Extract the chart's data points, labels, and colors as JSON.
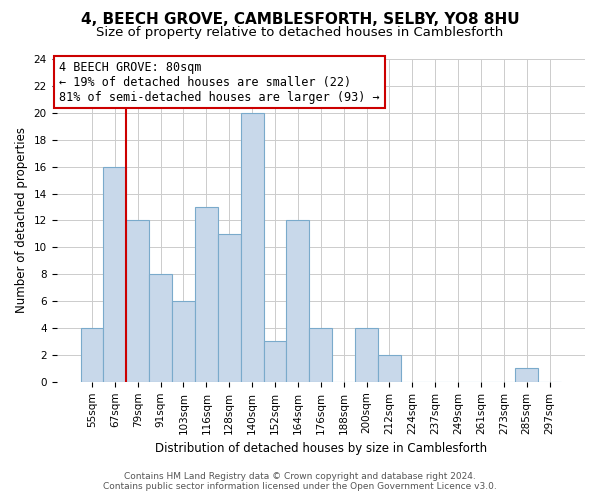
{
  "title": "4, BEECH GROVE, CAMBLESFORTH, SELBY, YO8 8HU",
  "subtitle": "Size of property relative to detached houses in Camblesforth",
  "xlabel": "Distribution of detached houses by size in Camblesforth",
  "ylabel": "Number of detached properties",
  "bin_labels": [
    "55sqm",
    "67sqm",
    "79sqm",
    "91sqm",
    "103sqm",
    "116sqm",
    "128sqm",
    "140sqm",
    "152sqm",
    "164sqm",
    "176sqm",
    "188sqm",
    "200sqm",
    "212sqm",
    "224sqm",
    "237sqm",
    "249sqm",
    "261sqm",
    "273sqm",
    "285sqm",
    "297sqm"
  ],
  "bar_values": [
    4,
    16,
    12,
    8,
    6,
    13,
    11,
    20,
    3,
    12,
    4,
    0,
    4,
    2,
    0,
    0,
    0,
    0,
    0,
    1,
    0
  ],
  "bar_color": "#c8d8ea",
  "bar_edge_color": "#7aaacb",
  "highlight_line_color": "#cc0000",
  "annotation_line1": "4 BEECH GROVE: 80sqm",
  "annotation_line2": "← 19% of detached houses are smaller (22)",
  "annotation_line3": "81% of semi-detached houses are larger (93) →",
  "annotation_box_color": "#ffffff",
  "annotation_box_edge_color": "#cc0000",
  "ylim": [
    0,
    24
  ],
  "yticks": [
    0,
    2,
    4,
    6,
    8,
    10,
    12,
    14,
    16,
    18,
    20,
    22,
    24
  ],
  "footer_line1": "Contains HM Land Registry data © Crown copyright and database right 2024.",
  "footer_line2": "Contains public sector information licensed under the Open Government Licence v3.0.",
  "background_color": "#ffffff",
  "grid_color": "#cccccc",
  "title_fontsize": 11,
  "subtitle_fontsize": 9.5,
  "axis_label_fontsize": 8.5,
  "tick_fontsize": 7.5,
  "footer_fontsize": 6.5,
  "annotation_fontsize": 8.5
}
